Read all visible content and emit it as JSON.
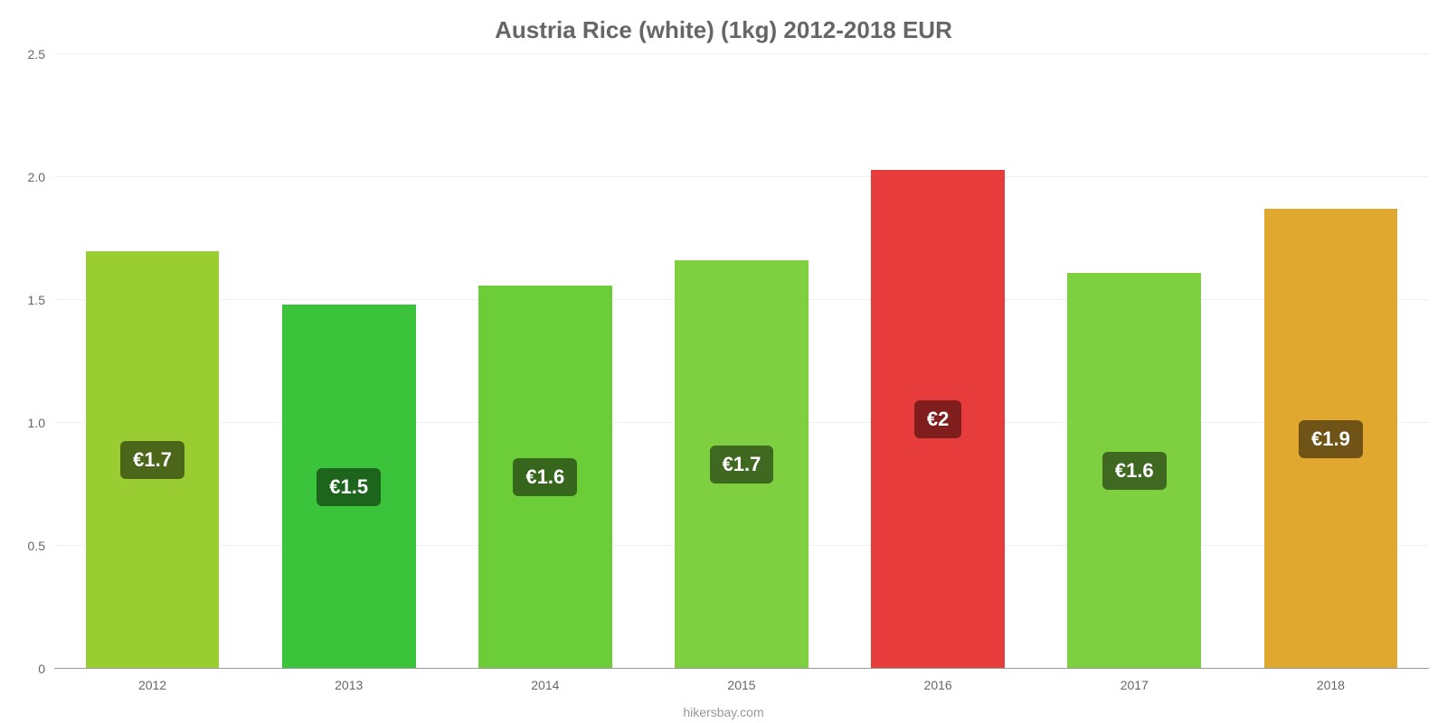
{
  "chart": {
    "type": "bar",
    "title": "Austria Rice (white) (1kg) 2012-2018 EUR",
    "title_color": "#666666",
    "title_fontsize": 26,
    "background_color": "#ffffff",
    "grid_color": "#f0f0f0",
    "baseline_color": "#999999",
    "axis_label_color": "#666666",
    "axis_fontsize": 14,
    "ylim": [
      0,
      2.5
    ],
    "ytick_step": 0.5,
    "yticks": [
      "0",
      "0.5",
      "1.0",
      "1.5",
      "2.0",
      "2.5"
    ],
    "categories": [
      "2012",
      "2013",
      "2014",
      "2015",
      "2016",
      "2017",
      "2018"
    ],
    "values": [
      1.7,
      1.48,
      1.56,
      1.66,
      2.03,
      1.61,
      1.87
    ],
    "display_labels": [
      "€1.7",
      "€1.5",
      "€1.6",
      "€1.7",
      "€2",
      "€1.6",
      "€1.9"
    ],
    "bar_colors": [
      "#9acd32",
      "#3bc43b",
      "#6bce39",
      "#7ed040",
      "#e73c3c",
      "#7ed040",
      "#e0a82e"
    ],
    "label_bg_colors": [
      "#4c6619",
      "#1d651d",
      "#35661c",
      "#3f6820",
      "#801d1d",
      "#3f6820",
      "#705417"
    ],
    "label_text_color": "#ffffff",
    "label_fontsize": 22,
    "bar_width_ratio": 0.68,
    "attribution": "hikersbay.com",
    "attribution_color": "#999999"
  }
}
